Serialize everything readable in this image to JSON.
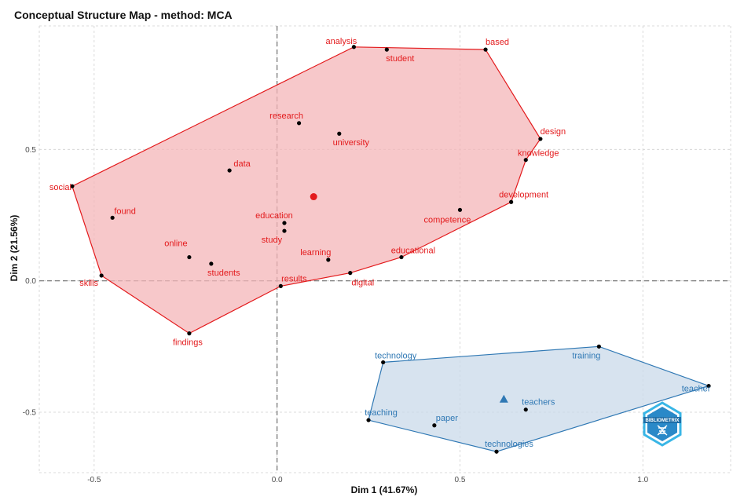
{
  "chart_data": {
    "type": "scatter",
    "title": "Conceptual Structure Map - method: MCA",
    "xlabel": "Dim 1 (41.67%)",
    "ylabel": "Dim 2 (21.56%)",
    "xlim": [
      -0.65,
      1.24
    ],
    "ylim": [
      -0.73,
      0.97
    ],
    "xticks": [
      -0.5,
      0.0,
      0.5,
      1.0
    ],
    "xtick_labels": [
      "-0.5",
      "0.0",
      "0.5",
      "1.0"
    ],
    "yticks": [
      -0.5,
      0.0,
      0.5
    ],
    "ytick_labels": [
      "-0.5",
      "0.0",
      "0.5"
    ],
    "grid": true,
    "reference_lines": {
      "x": 0,
      "y": 0
    },
    "clusters": [
      {
        "color": "#e31a1c",
        "fill": "#f4b6b8",
        "centroid": [
          0.1,
          0.32
        ],
        "centroid_marker": "circle",
        "hull_order": [
          "analysis",
          "based",
          "design",
          "knowledge",
          "development",
          "educational",
          "digital",
          "results",
          "findings",
          "skills",
          "social"
        ],
        "points": [
          {
            "label": "analysis",
            "x": 0.21,
            "y": 0.89
          },
          {
            "label": "student",
            "x": 0.3,
            "y": 0.88
          },
          {
            "label": "based",
            "x": 0.57,
            "y": 0.88
          },
          {
            "label": "research",
            "x": 0.06,
            "y": 0.6
          },
          {
            "label": "university",
            "x": 0.17,
            "y": 0.56
          },
          {
            "label": "design",
            "x": 0.72,
            "y": 0.54
          },
          {
            "label": "knowledge",
            "x": 0.68,
            "y": 0.46
          },
          {
            "label": "data",
            "x": -0.13,
            "y": 0.42
          },
          {
            "label": "social",
            "x": -0.56,
            "y": 0.36
          },
          {
            "label": "development",
            "x": 0.64,
            "y": 0.3
          },
          {
            "label": "competence",
            "x": 0.5,
            "y": 0.27
          },
          {
            "label": "found",
            "x": -0.45,
            "y": 0.24
          },
          {
            "label": "education",
            "x": 0.02,
            "y": 0.22
          },
          {
            "label": "study",
            "x": 0.02,
            "y": 0.19
          },
          {
            "label": "online",
            "x": -0.24,
            "y": 0.09
          },
          {
            "label": "learning",
            "x": 0.14,
            "y": 0.08
          },
          {
            "label": "educational",
            "x": 0.34,
            "y": 0.09
          },
          {
            "label": "students",
            "x": -0.18,
            "y": 0.065
          },
          {
            "label": "digital",
            "x": 0.2,
            "y": 0.03
          },
          {
            "label": "skills",
            "x": -0.48,
            "y": 0.02
          },
          {
            "label": "results",
            "x": 0.01,
            "y": -0.02
          },
          {
            "label": "findings",
            "x": -0.24,
            "y": -0.2
          }
        ]
      },
      {
        "color": "#2f78b4",
        "fill": "#c9d9ea",
        "centroid": [
          0.62,
          -0.45
        ],
        "centroid_marker": "triangle",
        "hull_order": [
          "technology",
          "training",
          "teacher",
          "technologies",
          "teaching"
        ],
        "points": [
          {
            "label": "training",
            "x": 0.88,
            "y": -0.25
          },
          {
            "label": "technology",
            "x": 0.29,
            "y": -0.31
          },
          {
            "label": "teacher",
            "x": 1.18,
            "y": -0.4
          },
          {
            "label": "teachers",
            "x": 0.68,
            "y": -0.49
          },
          {
            "label": "teaching",
            "x": 0.25,
            "y": -0.53
          },
          {
            "label": "paper",
            "x": 0.43,
            "y": -0.55
          },
          {
            "label": "technologies",
            "x": 0.6,
            "y": -0.65
          }
        ]
      }
    ]
  },
  "logo": {
    "text": "BIBLIOMETRIX",
    "color": "#2a89c8"
  }
}
